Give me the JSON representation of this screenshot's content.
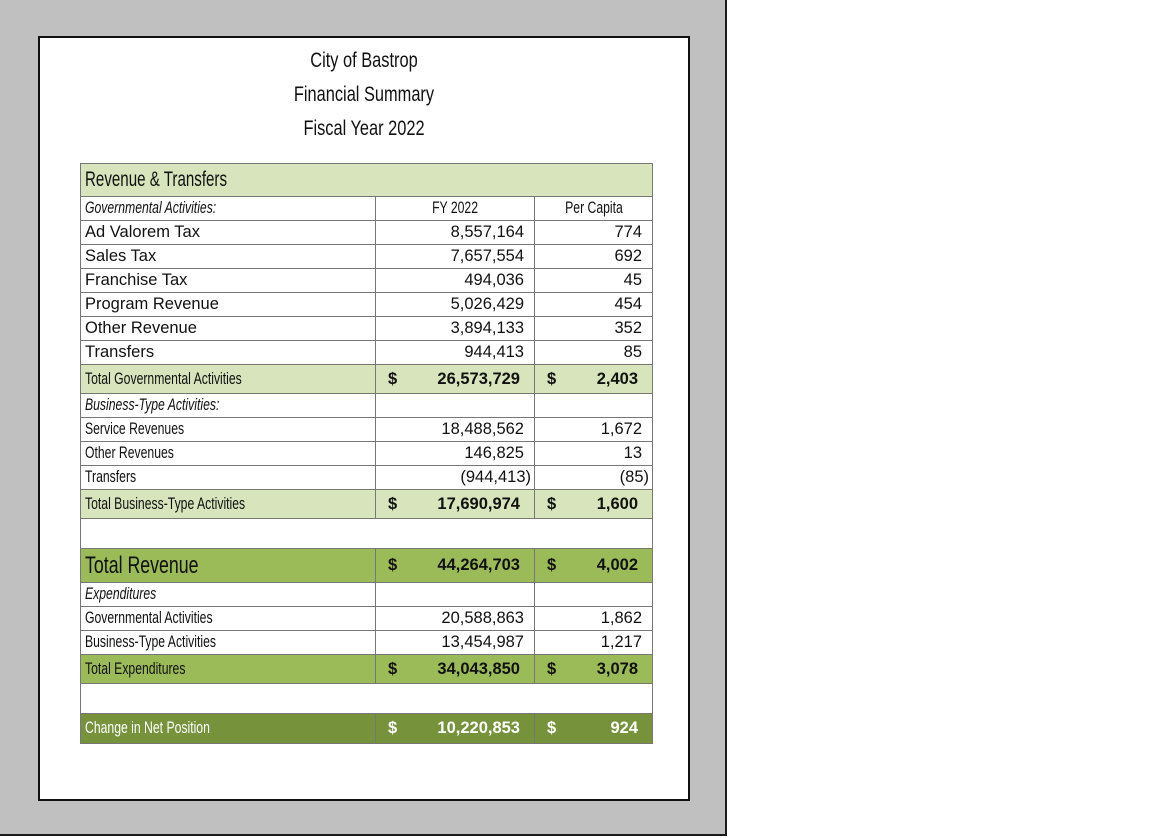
{
  "titles": {
    "line1": "City of Bastrop",
    "line2": "Financial Summary",
    "line3": "Fiscal Year 2022"
  },
  "table": {
    "section_header": "Revenue & Transfers",
    "gov_label": "Governmental Activities:",
    "col_fy": "FY 2022",
    "col_pc": "Per Capita",
    "currency": "$",
    "gov_rows": [
      {
        "label": "Ad Valorem Tax",
        "fy": "8,557,164",
        "pc": "774"
      },
      {
        "label": "Sales Tax",
        "fy": "7,657,554",
        "pc": "692"
      },
      {
        "label": "Franchise Tax",
        "fy": "494,036",
        "pc": "45"
      },
      {
        "label": "Program Revenue",
        "fy": "5,026,429",
        "pc": "454"
      },
      {
        "label": "Other Revenue",
        "fy": "3,894,133",
        "pc": "352"
      },
      {
        "label": "Transfers",
        "fy": "944,413",
        "pc": "85"
      }
    ],
    "gov_total": {
      "label": "Total Governmental Activities",
      "fy": "26,573,729",
      "pc": "2,403"
    },
    "bus_label": "Business-Type Activities:",
    "bus_rows": [
      {
        "label": "Service Revenues",
        "fy": "18,488,562",
        "pc": "1,672"
      },
      {
        "label": "Other Revenues",
        "fy": "146,825",
        "pc": "13"
      },
      {
        "label": "Transfers",
        "fy": "(944,413)",
        "pc": "(85)"
      }
    ],
    "bus_total": {
      "label": "Total Business-Type Activities",
      "fy": "17,690,974",
      "pc": "1,600"
    },
    "total_revenue": {
      "label": "Total Revenue",
      "fy": "44,264,703",
      "pc": "4,002"
    },
    "exp_label": "Expenditures",
    "exp_rows": [
      {
        "label": "Governmental Activities",
        "fy": "20,588,863",
        "pc": "1,862"
      },
      {
        "label": "Business-Type Activities",
        "fy": "13,454,987",
        "pc": "1,217"
      }
    ],
    "total_exp": {
      "label": "Total Expenditures",
      "fy": "34,043,850",
      "pc": "3,078"
    },
    "change": {
      "label": "Change in Net Position",
      "fy": "10,220,853",
      "pc": "924"
    }
  },
  "colors": {
    "light_green": "#d8e4bc",
    "mid_green": "#9bbb59",
    "dark_green": "#76933c",
    "frame_gray": "#c0c0c0"
  }
}
